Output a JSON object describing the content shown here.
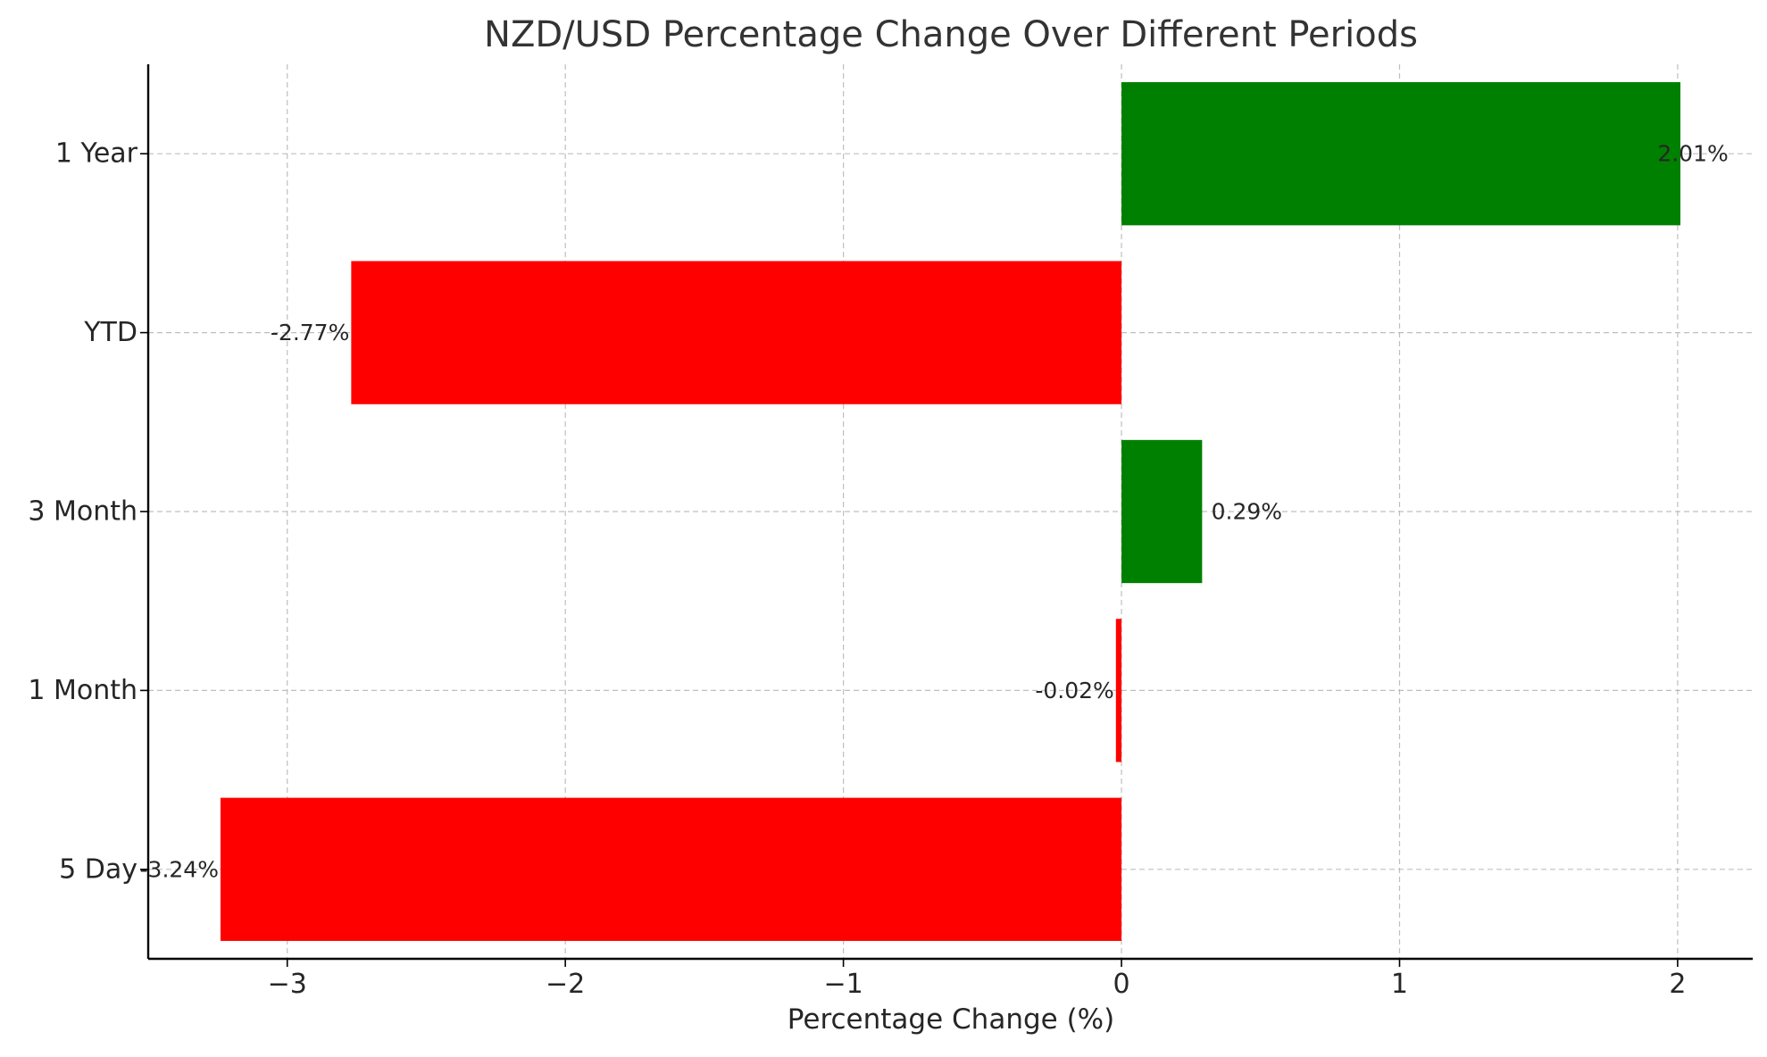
{
  "chart_data": {
    "type": "bar",
    "orientation": "horizontal",
    "title": "NZD/USD Percentage Change Over Different Periods",
    "xlabel": "Percentage Change (%)",
    "ylabel": "",
    "categories": [
      "5 Day",
      "1 Month",
      "3 Month",
      "YTD",
      "1 Year"
    ],
    "values": [
      -3.24,
      -0.02,
      0.29,
      -2.77,
      2.01
    ],
    "data_labels": [
      "-3.24%",
      "-0.02%",
      "0.29%",
      "-2.77%",
      "2.01%"
    ],
    "xlim": [
      -3.5,
      2.27
    ],
    "xticks": [
      -3,
      -2,
      -1,
      0,
      1,
      2
    ],
    "xtick_labels": [
      "−3",
      "−2",
      "−1",
      "0",
      "1",
      "2"
    ],
    "grid": true,
    "colors": {
      "positive": "#008000",
      "negative": "#ff0000",
      "grid": "#b0b0b0",
      "axis": "#000000",
      "text": "#262626"
    }
  }
}
